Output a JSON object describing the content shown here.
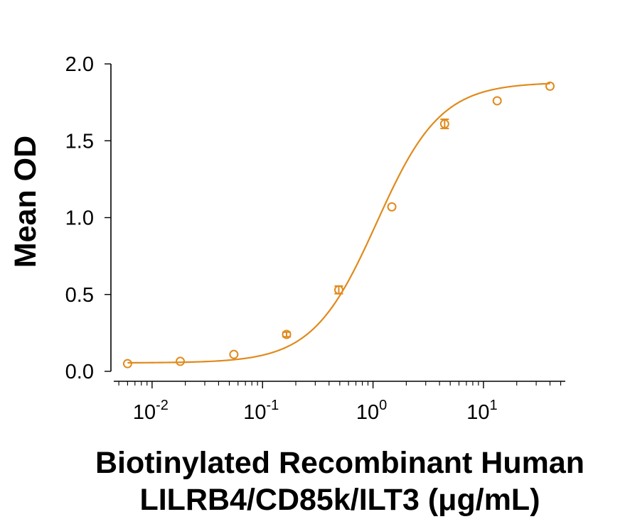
{
  "chart_data": {
    "type": "scatter",
    "title": "",
    "ylabel": "Mean OD",
    "xlabel_lines": [
      "Biotinylated Recombinant Human",
      "LILRB4/CD85k/ILT3 (μg/mL)"
    ],
    "x_scale": "log10",
    "xlim": [
      0.0045,
      55
    ],
    "ylim": [
      0,
      2.0
    ],
    "x_ticks": [
      {
        "value": 0.01,
        "base": "10",
        "exp": "-2"
      },
      {
        "value": 0.1,
        "base": "10",
        "exp": "-1"
      },
      {
        "value": 1,
        "base": "10",
        "exp": "0"
      },
      {
        "value": 10,
        "base": "10",
        "exp": "1"
      }
    ],
    "y_ticks": [
      {
        "value": 0.0,
        "label": "0.0"
      },
      {
        "value": 0.5,
        "label": "0.5"
      },
      {
        "value": 1.0,
        "label": "1.0"
      },
      {
        "value": 1.5,
        "label": "1.5"
      },
      {
        "value": 2.0,
        "label": "2.0"
      }
    ],
    "grid": false,
    "legend": "none",
    "color": "#E08A1C",
    "series": [
      {
        "x": [
          0.006,
          0.018,
          0.055,
          0.165,
          0.49,
          1.48,
          4.45,
          13.3,
          40.0
        ],
        "y": [
          0.05,
          0.065,
          0.11,
          0.24,
          0.53,
          1.07,
          1.61,
          1.76,
          1.855
        ],
        "err": [
          0.0,
          0.0,
          0.0,
          0.015,
          0.025,
          0.0,
          0.03,
          0.0,
          0.0
        ]
      }
    ],
    "fit": {
      "type": "4PL",
      "bottom": 0.055,
      "top": 1.88,
      "ec50": 1.08,
      "hill": 1.5
    }
  }
}
